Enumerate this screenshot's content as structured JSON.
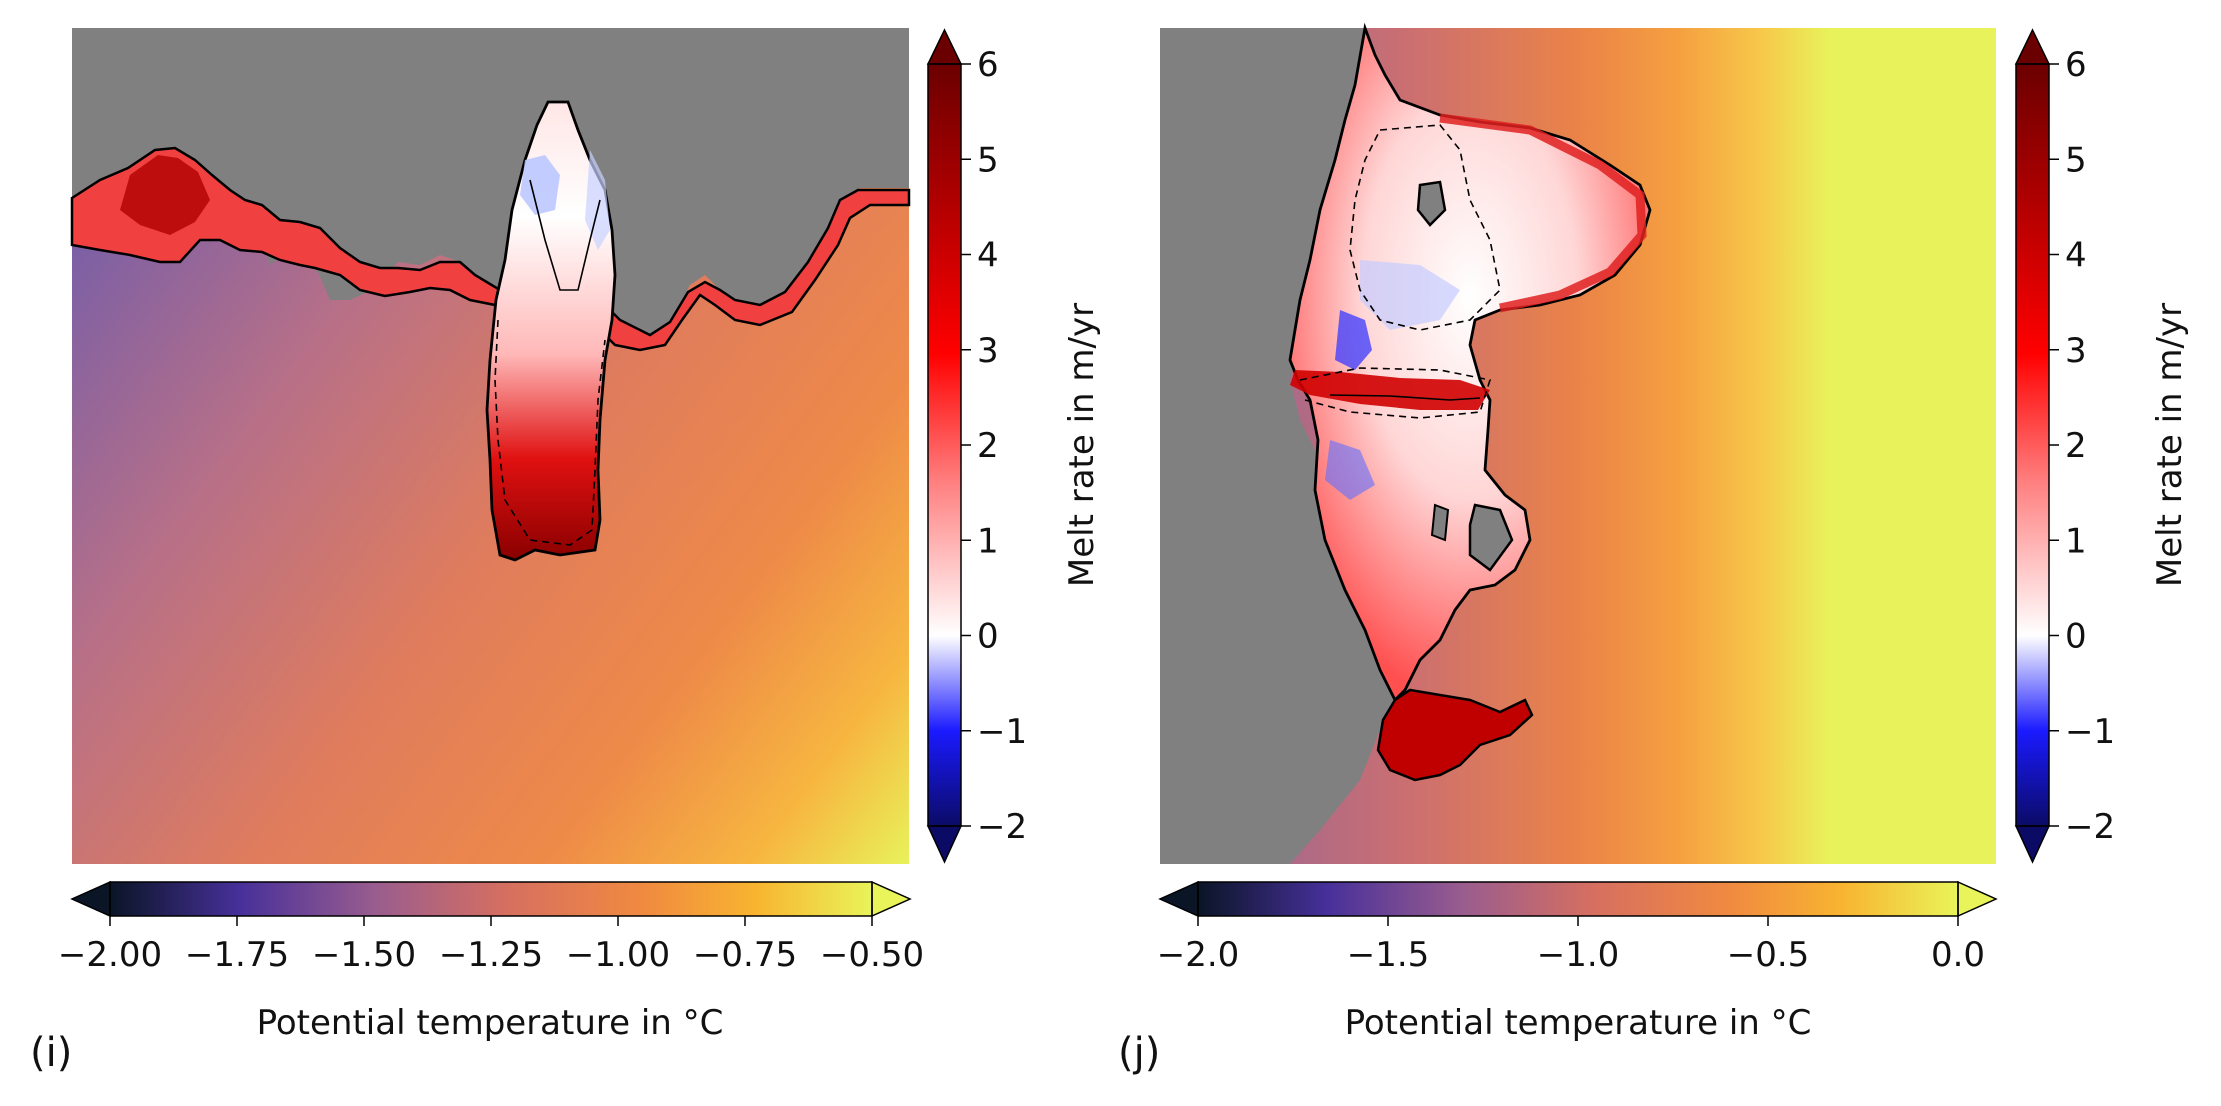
{
  "chart_data": [
    {
      "type": "heatmap",
      "panel_label": "(i)",
      "variable_background": "potential temperature",
      "variable_overlay": "melt rate",
      "colorbar_horizontal": {
        "label": "Potential temperature in °C",
        "range": [
          -2.0,
          -0.5
        ],
        "ticks": [
          "−2.00",
          "−1.75",
          "−1.50",
          "−1.25",
          "−1.00",
          "−0.75",
          "−0.50"
        ],
        "colormap": [
          "#0a1526",
          "#47309a",
          "#9a5d8e",
          "#d66f60",
          "#f08a40",
          "#f8b530",
          "#e9f45a"
        ]
      },
      "colorbar_vertical": {
        "label": "Melt rate in m/yr",
        "range": [
          -2,
          6
        ],
        "ticks": [
          "−2",
          "−1",
          "0",
          "1",
          "2",
          "3",
          "4",
          "5",
          "6"
        ],
        "colormap": [
          "#0b0b66",
          "#1a1aff",
          "#ffffff",
          "#ff7a7a",
          "#ff0000",
          "#a00000",
          "#6b0000"
        ]
      },
      "land_color": "#808080"
    },
    {
      "type": "heatmap",
      "panel_label": "(j)",
      "variable_background": "potential temperature",
      "variable_overlay": "melt rate",
      "colorbar_horizontal": {
        "label": "Potential temperature in °C",
        "range": [
          -2.0,
          0.0
        ],
        "ticks": [
          "−2.0",
          "−1.5",
          "−1.0",
          "−0.5",
          "0.0"
        ],
        "colormap": [
          "#0a1526",
          "#47309a",
          "#9a5d8e",
          "#d66f60",
          "#f08a40",
          "#f8b530",
          "#e9f45a"
        ]
      },
      "colorbar_vertical": {
        "label": "Melt rate in m/yr",
        "range": [
          -2,
          6
        ],
        "ticks": [
          "−2",
          "−1",
          "0",
          "1",
          "2",
          "3",
          "4",
          "5",
          "6"
        ],
        "colormap": [
          "#0b0b66",
          "#1a1aff",
          "#ffffff",
          "#ff7a7a",
          "#ff0000",
          "#a00000",
          "#6b0000"
        ]
      },
      "land_color": "#808080"
    }
  ]
}
